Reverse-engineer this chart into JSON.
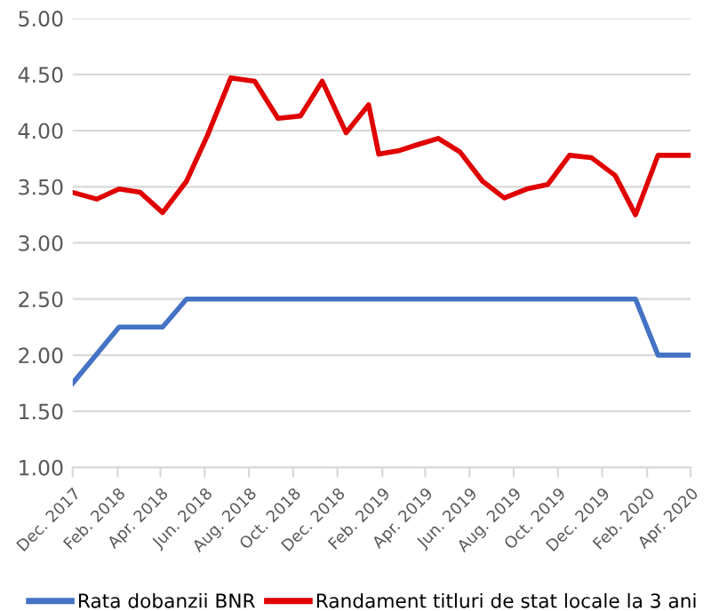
{
  "chart_data": {
    "type": "line",
    "ylim": [
      1.0,
      5.0
    ],
    "yticks": [
      {
        "value": 1,
        "label": "1.00"
      },
      {
        "value": 1.5,
        "label": "1.50"
      },
      {
        "value": 2,
        "label": "2.00"
      },
      {
        "value": 2.5,
        "label": "2.50"
      },
      {
        "value": 3,
        "label": "3.00"
      },
      {
        "value": 3.5,
        "label": "3.50"
      },
      {
        "value": 4,
        "label": "4.00"
      },
      {
        "value": 4.5,
        "label": "4.50"
      },
      {
        "value": 5,
        "label": "5.00"
      }
    ],
    "xlim": [
      "2017-12-01",
      "2020-04-01"
    ],
    "xticks": [
      {
        "value": "2017-12-01",
        "label": "Dec. 2017"
      },
      {
        "value": "2018-02-01",
        "label": "Feb. 2018"
      },
      {
        "value": "2018-04-01",
        "label": "Apr. 2018"
      },
      {
        "value": "2018-06-01",
        "label": "Jun. 2018"
      },
      {
        "value": "2018-08-01",
        "label": "Aug. 2018"
      },
      {
        "value": "2018-10-01",
        "label": "Oct. 2018"
      },
      {
        "value": "2018-12-01",
        "label": "Dec. 2018"
      },
      {
        "value": "2019-02-01",
        "label": "Feb. 2019"
      },
      {
        "value": "2019-04-01",
        "label": "Apr. 2019"
      },
      {
        "value": "2019-06-01",
        "label": "Jun. 2019"
      },
      {
        "value": "2019-08-01",
        "label": "Aug. 2019"
      },
      {
        "value": "2019-10-01",
        "label": "Oct. 2019"
      },
      {
        "value": "2019-12-01",
        "label": "Dec. 2019"
      },
      {
        "value": "2020-02-01",
        "label": "Feb. 2020"
      },
      {
        "value": "2020-04-01",
        "label": "Apr. 2020"
      }
    ],
    "grid": "y",
    "legend": "bottom",
    "line_style": "solid",
    "marker": "none",
    "series": [
      {
        "name": "Rata dobanzii BNR",
        "color": "#4472c4",
        "x": [
          "2017-12-01",
          "2018-02-03",
          "2018-04-04",
          "2018-05-07",
          "2020-01-16",
          "2020-02-16",
          "2020-04-01"
        ],
        "values": [
          1.75,
          2.25,
          2.25,
          2.5,
          2.5,
          2.0,
          2.0
        ]
      },
      {
        "name": "Randament titluri de stat locale la 3 ani",
        "color": "#e00000",
        "x": [
          "2017-12-01",
          "2018-01-03",
          "2018-02-03",
          "2018-03-04",
          "2018-04-04",
          "2018-05-07",
          "2018-06-05",
          "2018-07-07",
          "2018-08-09",
          "2018-09-10",
          "2018-10-11",
          "2018-11-10",
          "2018-12-13",
          "2019-01-13",
          "2019-01-27",
          "2019-02-23",
          "2019-03-19",
          "2019-04-19",
          "2019-05-19",
          "2019-06-19",
          "2019-07-19",
          "2019-08-19",
          "2019-09-17",
          "2019-10-17",
          "2019-11-16",
          "2019-12-19",
          "2020-01-16",
          "2020-02-16",
          "2020-04-01"
        ],
        "values": [
          3.45,
          3.39,
          3.48,
          3.45,
          3.27,
          3.55,
          3.96,
          4.47,
          4.44,
          4.11,
          4.13,
          4.44,
          3.98,
          4.23,
          3.79,
          3.82,
          3.87,
          3.93,
          3.81,
          3.55,
          3.4,
          3.48,
          3.52,
          3.78,
          3.76,
          3.6,
          3.25,
          3.78,
          3.78
        ]
      }
    ]
  }
}
